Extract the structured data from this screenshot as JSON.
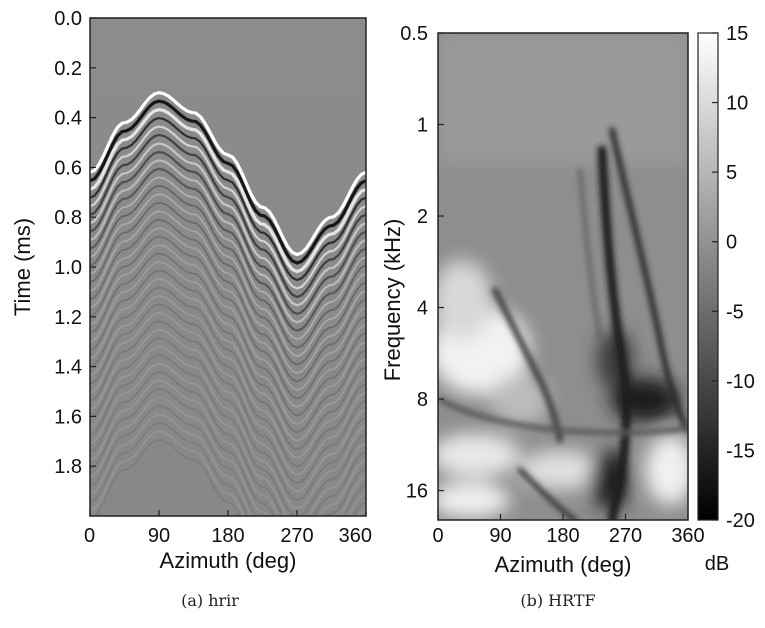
{
  "chart_data": [
    {
      "type": "heatmap",
      "panel": "hrir",
      "caption": "(a)  hrir",
      "xlabel": "Azimuth   (deg)",
      "ylabel": "Time   (ms)",
      "x_ticks": [
        0,
        90,
        180,
        270,
        360
      ],
      "x_tick_labels": [
        "0",
        "90",
        "180",
        "270",
        "360"
      ],
      "y_ticks": [
        0.0,
        0.2,
        0.4,
        0.6,
        0.8,
        1.0,
        1.2,
        1.4,
        1.6,
        1.8
      ],
      "y_tick_labels": [
        "0.0",
        "0.2",
        "0.4",
        "0.6",
        "0.8",
        "1.0",
        "1.2",
        "1.4",
        "1.6",
        "1.8"
      ],
      "xlim": [
        0,
        360
      ],
      "ylim": [
        0.0,
        2.0
      ],
      "y_inverted": true,
      "colormap": "gray",
      "arrival_curve": {
        "azimuth": [
          0,
          45,
          90,
          135,
          180,
          225,
          270,
          315,
          360
        ],
        "time_ms": [
          0.62,
          0.42,
          0.3,
          0.38,
          0.55,
          0.76,
          0.95,
          0.8,
          0.62
        ]
      },
      "background": "#8a8a8a"
    },
    {
      "type": "heatmap",
      "panel": "HRTF",
      "caption": "(b)  HRTF",
      "xlabel": "Azimuth   (deg)",
      "ylabel": "Frequency   (kHz)",
      "x_ticks": [
        0,
        90,
        180,
        270,
        360
      ],
      "x_tick_labels": [
        "0",
        "90",
        "180",
        "270",
        "360"
      ],
      "y_ticks": [
        0.5,
        1,
        2,
        4,
        8,
        16
      ],
      "y_tick_labels": [
        "0.5",
        "1",
        "2",
        "4",
        "8",
        "16"
      ],
      "y_scale": "log",
      "xlim": [
        0,
        360
      ],
      "ylim": [
        0.5,
        20
      ],
      "colormap": "gray",
      "colorbar": {
        "ticks": [
          15,
          10,
          5,
          0,
          -5,
          -10,
          -15,
          -20
        ],
        "tick_labels": [
          "15",
          "10",
          "5",
          "0",
          "-5",
          "-10",
          "-15",
          "-20"
        ],
        "range": [
          -20,
          15
        ],
        "unit": "dB"
      }
    }
  ]
}
